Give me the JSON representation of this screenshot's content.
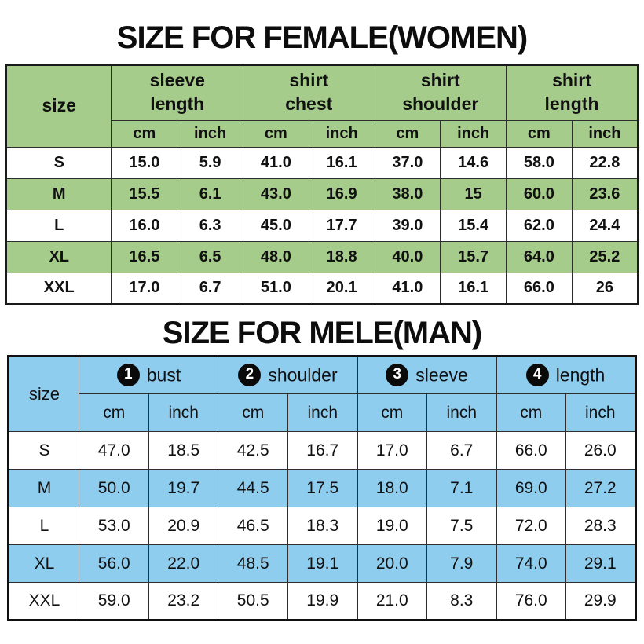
{
  "colors": {
    "female_accent": "#a6cc8b",
    "male_accent": "#8fcdee",
    "border": "#2e2e2e"
  },
  "female_table": {
    "title": "SIZE FOR FEMALE(WOMEN)",
    "size_header": "size",
    "unit_headers": [
      "cm",
      "inch"
    ],
    "groups": [
      {
        "line1": "sleeve",
        "line2": "length"
      },
      {
        "line1": "shirt",
        "line2": "chest"
      },
      {
        "line1": "shirt",
        "line2": "shoulder"
      },
      {
        "line1": "shirt",
        "line2": "length"
      }
    ],
    "rows": [
      {
        "size": "S",
        "highlight": false,
        "values": [
          "15.0",
          "5.9",
          "41.0",
          "16.1",
          "37.0",
          "14.6",
          "58.0",
          "22.8"
        ]
      },
      {
        "size": "M",
        "highlight": true,
        "values": [
          "15.5",
          "6.1",
          "43.0",
          "16.9",
          "38.0",
          "15",
          "60.0",
          "23.6"
        ]
      },
      {
        "size": "L",
        "highlight": false,
        "values": [
          "16.0",
          "6.3",
          "45.0",
          "17.7",
          "39.0",
          "15.4",
          "62.0",
          "24.4"
        ]
      },
      {
        "size": "XL",
        "highlight": true,
        "values": [
          "16.5",
          "6.5",
          "48.0",
          "18.8",
          "40.0",
          "15.7",
          "64.0",
          "25.2"
        ]
      },
      {
        "size": "XXL",
        "highlight": false,
        "values": [
          "17.0",
          "6.7",
          "51.0",
          "20.1",
          "41.0",
          "16.1",
          "66.0",
          "26"
        ]
      }
    ]
  },
  "male_table": {
    "title": "SIZE FOR MELE(MAN)",
    "size_header": "size",
    "unit_headers": [
      "cm",
      "inch"
    ],
    "groups": [
      {
        "num": "1",
        "label": "bust"
      },
      {
        "num": "2",
        "label": "shoulder"
      },
      {
        "num": "3",
        "label": "sleeve"
      },
      {
        "num": "4",
        "label": "length"
      }
    ],
    "rows": [
      {
        "size": "S",
        "highlight": false,
        "values": [
          "47.0",
          "18.5",
          "42.5",
          "16.7",
          "17.0",
          "6.7",
          "66.0",
          "26.0"
        ]
      },
      {
        "size": "M",
        "highlight": true,
        "values": [
          "50.0",
          "19.7",
          "44.5",
          "17.5",
          "18.0",
          "7.1",
          "69.0",
          "27.2"
        ]
      },
      {
        "size": "L",
        "highlight": false,
        "values": [
          "53.0",
          "20.9",
          "46.5",
          "18.3",
          "19.0",
          "7.5",
          "72.0",
          "28.3"
        ]
      },
      {
        "size": "XL",
        "highlight": true,
        "values": [
          "56.0",
          "22.0",
          "48.5",
          "19.1",
          "20.0",
          "7.9",
          "74.0",
          "29.1"
        ]
      },
      {
        "size": "XXL",
        "highlight": false,
        "values": [
          "59.0",
          "23.2",
          "50.5",
          "19.9",
          "21.0",
          "8.3",
          "76.0",
          "29.9"
        ]
      }
    ]
  }
}
